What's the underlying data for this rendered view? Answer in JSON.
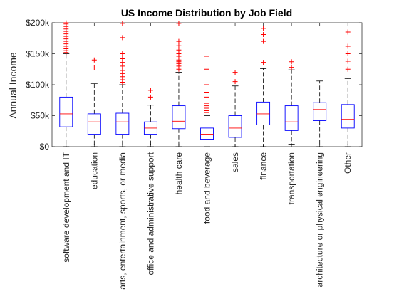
{
  "chart_data": {
    "type": "box",
    "title": "US Income Distribution by Job Field",
    "xlabel": "",
    "ylabel": "Annual Income",
    "ylim": [
      0,
      200000
    ],
    "yticks": [
      0,
      50000,
      100000,
      150000,
      200000
    ],
    "ytick_labels": [
      "$0",
      "$50k",
      "$100k",
      "$150k",
      "$200k"
    ],
    "grid": false,
    "colors": {
      "box": "#0000ff",
      "median": "#ff0000",
      "whisker": "#000000",
      "outlier": "#ff0000"
    },
    "categories": [
      "software development and IT",
      "education",
      "arts, entertainment, sports, or media",
      "office and administrative support",
      "health care",
      "food and beverage",
      "sales",
      "finance",
      "transportation",
      "architecture or physical engineering",
      "Other"
    ],
    "boxes": [
      {
        "whisker_low": 0,
        "q1": 32000,
        "median": 53000,
        "q3": 80000,
        "whisker_high": 150000,
        "outliers": [
          152000,
          155000,
          158000,
          162000,
          166000,
          170000,
          174000,
          178000,
          182000,
          186000,
          190000,
          194000,
          198000,
          200000
        ]
      },
      {
        "whisker_low": 0,
        "q1": 20000,
        "median": 40000,
        "q3": 53000,
        "whisker_high": 102000,
        "outliers": [
          127000,
          140000
        ]
      },
      {
        "whisker_low": 0,
        "q1": 20000,
        "median": 40000,
        "q3": 54000,
        "whisker_high": 100000,
        "outliers": [
          104000,
          108000,
          113000,
          118000,
          123000,
          130000,
          136000,
          142000,
          150000,
          176000,
          199000
        ]
      },
      {
        "whisker_low": 0,
        "q1": 20000,
        "median": 30000,
        "q3": 40000,
        "whisker_high": 67000,
        "outliers": [
          80000,
          91000
        ]
      },
      {
        "whisker_low": 0,
        "q1": 29000,
        "median": 41000,
        "q3": 66000,
        "whisker_high": 120000,
        "outliers": [
          125000,
          130000,
          134000,
          137000,
          140000,
          146000,
          150000,
          156000,
          163000,
          170000,
          199000
        ]
      },
      {
        "whisker_low": 0,
        "q1": 12000,
        "median": 20000,
        "q3": 30000,
        "whisker_high": 50000,
        "outliers": [
          55000,
          58000,
          62000,
          66000,
          70000,
          80000,
          88000,
          100000,
          125000,
          146000
        ]
      },
      {
        "whisker_low": 0,
        "q1": 15000,
        "median": 30000,
        "q3": 50000,
        "whisker_high": 98000,
        "outliers": [
          105000,
          120000
        ]
      },
      {
        "whisker_low": 0,
        "q1": 35000,
        "median": 53000,
        "q3": 72000,
        "whisker_high": 126000,
        "outliers": [
          136000,
          170000,
          181000,
          191000
        ]
      },
      {
        "whisker_low": 4000,
        "q1": 26000,
        "median": 40000,
        "q3": 66000,
        "whisker_high": 124000,
        "outliers": [
          128000,
          137000
        ]
      },
      {
        "whisker_low": 0,
        "q1": 42000,
        "median": 60000,
        "q3": 71000,
        "whisker_high": 106000,
        "outliers": []
      },
      {
        "whisker_low": 0,
        "q1": 30000,
        "median": 44000,
        "q3": 68000,
        "whisker_high": 110000,
        "outliers": [
          125000,
          138000,
          150000,
          162000,
          185000
        ]
      }
    ]
  }
}
